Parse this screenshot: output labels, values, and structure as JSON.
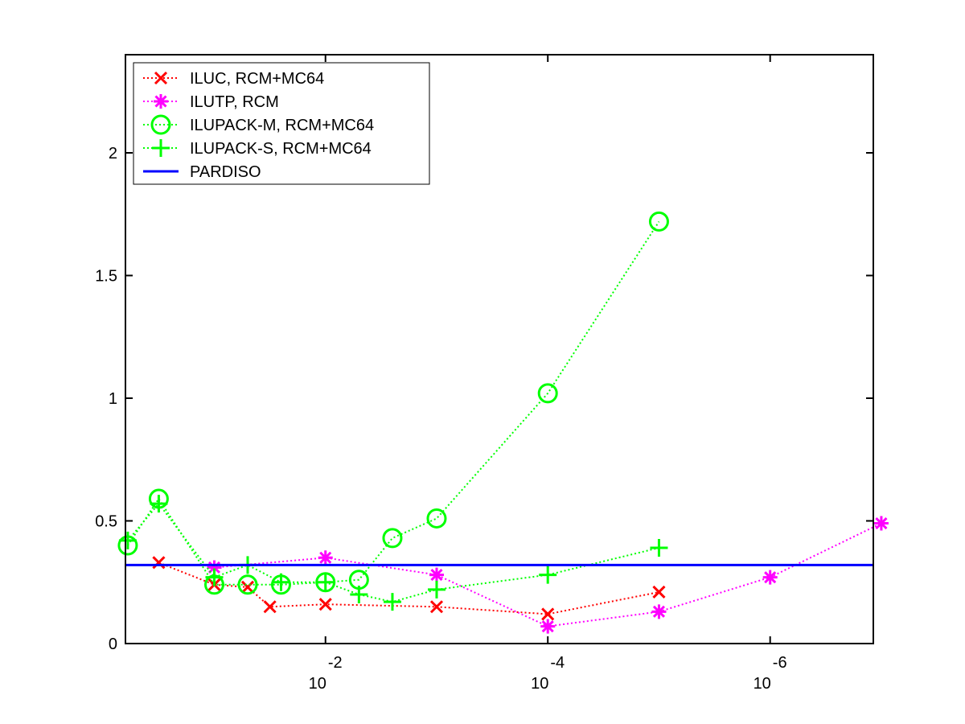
{
  "chart_data": {
    "type": "line",
    "title": "",
    "xlabel": "",
    "ylabel": "",
    "x_scale": "log",
    "x_reversed": true,
    "xlim": [
      0.63,
      1.18e-07
    ],
    "ylim": [
      0,
      2.4
    ],
    "xticks": [
      {
        "value": 0.01,
        "base": "10",
        "exp": "-2"
      },
      {
        "value": 0.0001,
        "base": "10",
        "exp": "-4"
      },
      {
        "value": 1e-06,
        "base": "10",
        "exp": "-6"
      }
    ],
    "yticks": [
      {
        "value": 0,
        "label": "0"
      },
      {
        "value": 0.5,
        "label": "0.5"
      },
      {
        "value": 1,
        "label": "1"
      },
      {
        "value": 1.5,
        "label": "1.5"
      },
      {
        "value": 2,
        "label": "2"
      }
    ],
    "grid": false,
    "legend_position": "top-left",
    "series": [
      {
        "name": "ILUC, RCM+MC64",
        "color": "#ff0000",
        "marker": "x",
        "line": "dotted",
        "x": [
          0.316,
          0.1,
          0.0501,
          0.0316,
          0.01,
          0.001,
          0.0001,
          1e-05
        ],
        "y": [
          0.33,
          0.24,
          0.23,
          0.15,
          0.16,
          0.15,
          0.12,
          0.21
        ]
      },
      {
        "name": "ILUTP, RCM",
        "color": "#ff00ff",
        "marker": "asterisk",
        "line": "dotted",
        "x": [
          0.1,
          0.01,
          0.001,
          0.0001,
          1e-05,
          1e-06,
          1e-07
        ],
        "y": [
          0.31,
          0.35,
          0.28,
          0.07,
          0.13,
          0.27,
          0.49
        ]
      },
      {
        "name": "ILUPACK-M, RCM+MC64",
        "color": "#00ff00",
        "marker": "circle",
        "line": "dotted",
        "x": [
          0.6,
          0.316,
          0.1,
          0.0501,
          0.0251,
          0.01,
          0.005,
          0.0025,
          0.001,
          0.0001,
          1e-05
        ],
        "y": [
          0.4,
          0.59,
          0.24,
          0.24,
          0.24,
          0.25,
          0.26,
          0.43,
          0.51,
          1.02,
          1.72
        ]
      },
      {
        "name": "ILUPACK-S, RCM+MC64",
        "color": "#00ff00",
        "marker": "plus",
        "line": "dotted",
        "x": [
          0.6,
          0.316,
          0.1,
          0.0501,
          0.0251,
          0.01,
          0.005,
          0.0025,
          0.001,
          0.0001,
          1e-05
        ],
        "y": [
          0.42,
          0.57,
          0.27,
          0.32,
          0.25,
          0.25,
          0.2,
          0.17,
          0.22,
          0.28,
          0.39
        ]
      },
      {
        "name": "PARDISO",
        "color": "#0000ff",
        "marker": "none",
        "line": "solid",
        "x": [
          0.63,
          1.18e-07
        ],
        "y": [
          0.32,
          0.32
        ]
      }
    ]
  }
}
